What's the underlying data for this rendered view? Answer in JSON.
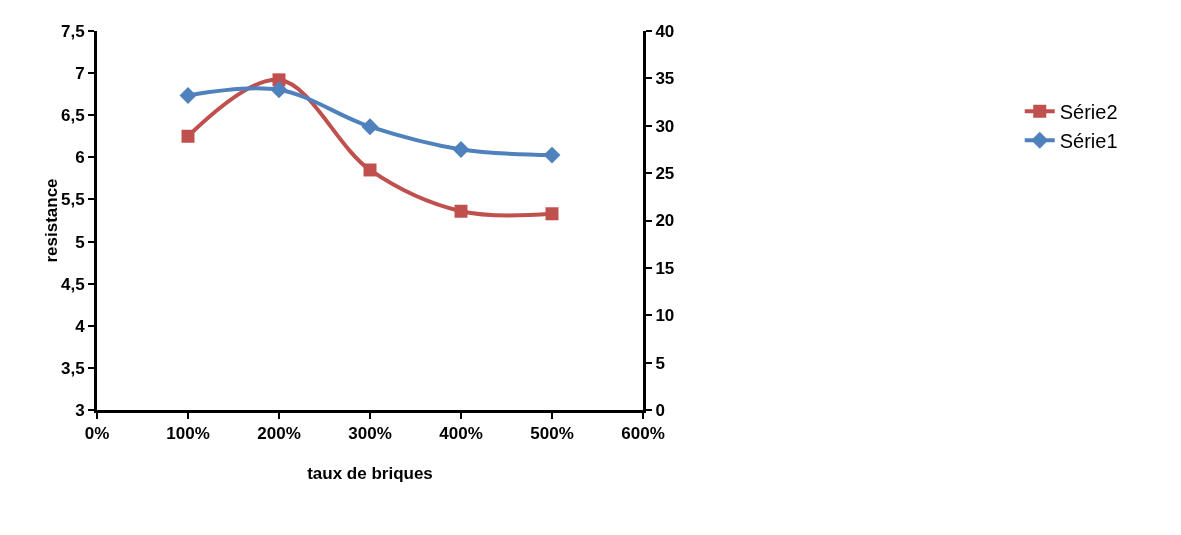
{
  "chart_data": {
    "type": "line",
    "xlabel": "taux de briques",
    "ylabel": "resistance",
    "x": [
      100,
      200,
      300,
      400,
      500
    ],
    "series": [
      {
        "name": "Série2",
        "color": "#c0504d",
        "marker": "square",
        "values": [
          6.25,
          6.92,
          5.85,
          5.36,
          5.33
        ]
      },
      {
        "name": "Série1",
        "color": "#4f81bd",
        "marker": "diamond",
        "axis": "y2",
        "values": [
          33.2,
          33.8,
          29.9,
          27.5,
          26.9
        ]
      }
    ],
    "xlim": [
      0,
      600
    ],
    "xticks": [
      {
        "value": 0,
        "label": "0%"
      },
      {
        "value": 100,
        "label": "100%"
      },
      {
        "value": 200,
        "label": "200%"
      },
      {
        "value": 300,
        "label": "300%"
      },
      {
        "value": 400,
        "label": "400%"
      },
      {
        "value": 500,
        "label": "500%"
      },
      {
        "value": 600,
        "label": "600%"
      }
    ],
    "ylim": [
      3,
      7.5
    ],
    "yticks": [
      {
        "value": 3,
        "label": "3"
      },
      {
        "value": 3.5,
        "label": "3,5"
      },
      {
        "value": 4,
        "label": "4"
      },
      {
        "value": 4.5,
        "label": "4,5"
      },
      {
        "value": 5,
        "label": "5"
      },
      {
        "value": 5.5,
        "label": "5,5"
      },
      {
        "value": 6,
        "label": "6"
      },
      {
        "value": 6.5,
        "label": "6,5"
      },
      {
        "value": 7,
        "label": "7"
      },
      {
        "value": 7.5,
        "label": "7,5"
      }
    ],
    "y2lim": [
      0,
      40
    ],
    "y2ticks": [
      0,
      5,
      10,
      15,
      20,
      25,
      30,
      35,
      40
    ],
    "legend": "right",
    "line_style": "solid"
  }
}
